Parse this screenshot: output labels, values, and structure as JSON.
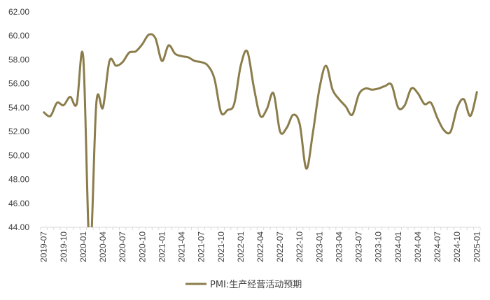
{
  "chart_data": {
    "type": "line",
    "title": "",
    "xlabel": "",
    "ylabel": "",
    "ylim": [
      44,
      62
    ],
    "y_ticks": [
      "44.00",
      "46.00",
      "48.00",
      "50.00",
      "52.00",
      "54.00",
      "56.00",
      "58.00",
      "60.00",
      "62.00"
    ],
    "x_tick_labels": [
      "2019-07",
      "2019-10",
      "2020-01",
      "2020-04",
      "2020-07",
      "2020-10",
      "2021-01",
      "2021-04",
      "2021-07",
      "2021-10",
      "2022-01",
      "2022-04",
      "2022-07",
      "2022-10",
      "2023-01",
      "2023-04",
      "2023-07",
      "2023-10",
      "2024-01",
      "2024-04",
      "2024-07",
      "2024-10",
      "2025-01"
    ],
    "grid": false,
    "legend_position": "bottom",
    "series": [
      {
        "name": "PMI:生产经营活动预期",
        "color": "#8B7D4B",
        "points": [
          [
            "2019-07",
            53.6
          ],
          [
            "2019-08",
            53.3
          ],
          [
            "2019-09",
            54.4
          ],
          [
            "2019-10",
            54.2
          ],
          [
            "2019-11",
            54.9
          ],
          [
            "2019-12",
            54.3
          ],
          [
            "2020-01",
            58.2
          ],
          [
            "2020-02",
            41.8
          ],
          [
            "2020-03",
            54.4
          ],
          [
            "2020-04",
            54.0
          ],
          [
            "2020-05",
            57.9
          ],
          [
            "2020-06",
            57.5
          ],
          [
            "2020-07",
            57.8
          ],
          [
            "2020-08",
            58.6
          ],
          [
            "2020-09",
            58.7
          ],
          [
            "2020-10",
            59.3
          ],
          [
            "2020-11",
            60.1
          ],
          [
            "2020-12",
            59.8
          ],
          [
            "2021-01",
            57.9
          ],
          [
            "2021-02",
            59.2
          ],
          [
            "2021-03",
            58.5
          ],
          [
            "2021-04",
            58.3
          ],
          [
            "2021-05",
            58.2
          ],
          [
            "2021-06",
            57.9
          ],
          [
            "2021-07",
            57.8
          ],
          [
            "2021-08",
            57.5
          ],
          [
            "2021-09",
            56.4
          ],
          [
            "2021-10",
            53.6
          ],
          [
            "2021-11",
            53.8
          ],
          [
            "2021-12",
            54.3
          ],
          [
            "2022-01",
            57.5
          ],
          [
            "2022-02",
            58.7
          ],
          [
            "2022-03",
            55.7
          ],
          [
            "2022-04",
            53.3
          ],
          [
            "2022-05",
            53.9
          ],
          [
            "2022-06",
            55.2
          ],
          [
            "2022-07",
            52.0
          ],
          [
            "2022-08",
            52.3
          ],
          [
            "2022-09",
            53.4
          ],
          [
            "2022-10",
            52.6
          ],
          [
            "2022-11",
            48.9
          ],
          [
            "2022-12",
            51.9
          ],
          [
            "2023-01",
            55.6
          ],
          [
            "2023-02",
            57.5
          ],
          [
            "2023-03",
            55.5
          ],
          [
            "2023-04",
            54.7
          ],
          [
            "2023-05",
            54.1
          ],
          [
            "2023-06",
            53.4
          ],
          [
            "2023-07",
            55.1
          ],
          [
            "2023-08",
            55.6
          ],
          [
            "2023-09",
            55.5
          ],
          [
            "2023-10",
            55.6
          ],
          [
            "2023-11",
            55.8
          ],
          [
            "2023-12",
            55.9
          ],
          [
            "2024-01",
            54.0
          ],
          [
            "2024-02",
            54.2
          ],
          [
            "2024-03",
            55.6
          ],
          [
            "2024-04",
            55.2
          ],
          [
            "2024-05",
            54.3
          ],
          [
            "2024-06",
            54.4
          ],
          [
            "2024-07",
            53.1
          ],
          [
            "2024-08",
            52.1
          ],
          [
            "2024-09",
            52.0
          ],
          [
            "2024-10",
            54.0
          ],
          [
            "2024-11",
            54.7
          ],
          [
            "2024-12",
            53.3
          ],
          [
            "2025-01",
            55.3
          ]
        ]
      }
    ]
  }
}
